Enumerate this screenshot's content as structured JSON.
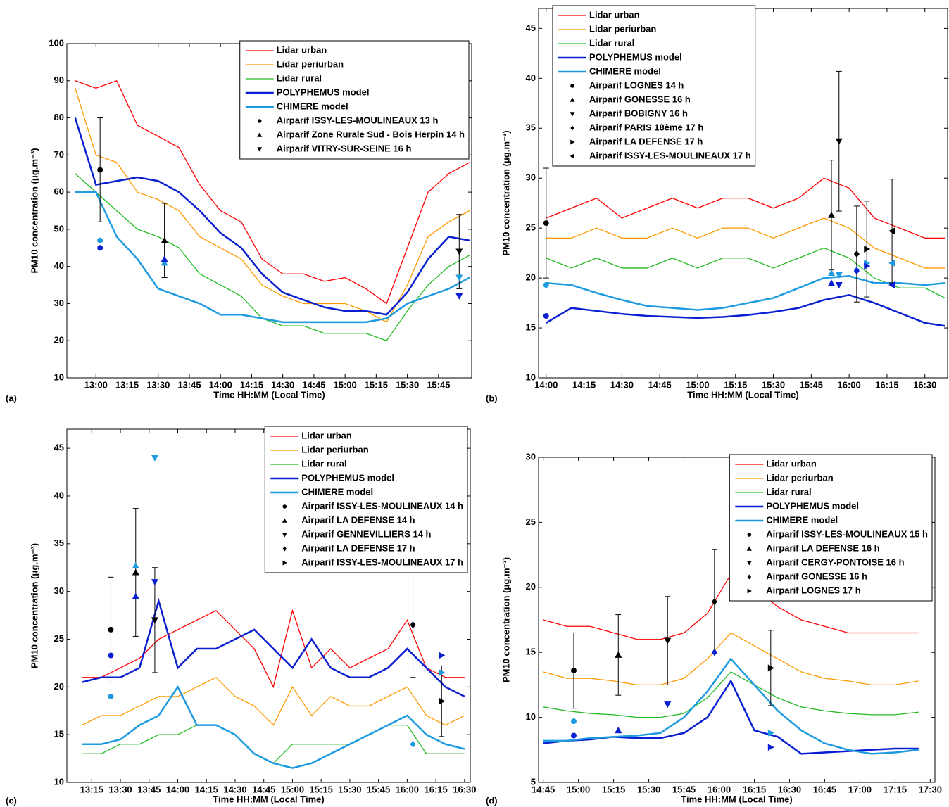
{
  "chart_data": [
    {
      "type": "line",
      "label": "(a)",
      "ylabel": "PM10 concentration (μg.m⁻³)",
      "xlabel": "Time HH:MM (Local Time)",
      "legend": "upper right",
      "xlim": [
        "12:46",
        "16:01"
      ],
      "xticks": [
        "13:00",
        "13:15",
        "13:30",
        "13:45",
        "14:00",
        "14:15",
        "14:30",
        "14:45",
        "15:00",
        "15:15",
        "15:30",
        "15:45"
      ],
      "ylim": [
        10,
        100
      ],
      "yticks": [
        10,
        20,
        30,
        40,
        50,
        60,
        70,
        80,
        90,
        100
      ],
      "x": [
        "12:50",
        "13:00",
        "13:10",
        "13:20",
        "13:30",
        "13:40",
        "13:50",
        "14:00",
        "14:10",
        "14:20",
        "14:30",
        "14:40",
        "14:50",
        "15:00",
        "15:10",
        "15:20",
        "15:30",
        "15:40",
        "15:50",
        "16:00"
      ],
      "series": [
        {
          "name": "Lidar urban",
          "color": "#ff0000",
          "values": [
            90,
            88,
            90,
            78,
            75,
            72,
            62,
            55,
            52,
            42,
            38,
            38,
            36,
            37,
            34,
            30,
            45,
            60,
            65,
            68
          ]
        },
        {
          "name": "Lidar periurban",
          "color": "#ff9900",
          "values": [
            88,
            70,
            68,
            60,
            58,
            55,
            48,
            45,
            42,
            35,
            32,
            30,
            30,
            30,
            28,
            25,
            35,
            48,
            52,
            55
          ]
        },
        {
          "name": "Lidar rural",
          "color": "#22bb22",
          "values": [
            65,
            60,
            55,
            50,
            48,
            45,
            38,
            35,
            32,
            26,
            24,
            24,
            22,
            22,
            22,
            20,
            28,
            35,
            40,
            43
          ]
        },
        {
          "name": "POLYPHEMUS model",
          "color": "#0a1fd0",
          "values": [
            80,
            62,
            63,
            64,
            63,
            60,
            55,
            49,
            45,
            38,
            33,
            31,
            29,
            28,
            28,
            27,
            33,
            42,
            48,
            47
          ]
        },
        {
          "name": "CHIMERE model",
          "color": "#1e9be0",
          "values": [
            60,
            60,
            48,
            42,
            34,
            32,
            30,
            27,
            27,
            26,
            25,
            25,
            25,
            25,
            25,
            26,
            30,
            32,
            34,
            37
          ]
        }
      ],
      "stations": [
        {
          "name": "Airparif ISSY-LES-MOULINEAUX 13 h",
          "marker": "circle",
          "x": "13:02",
          "value": 66,
          "error": 14,
          "polyphemus": 45,
          "chimere": 47
        },
        {
          "name": "Airparif Zone Rurale Sud - Bois Herpin 14 h",
          "marker": "triangle-up",
          "x": "13:33",
          "value": 47,
          "error": 10,
          "polyphemus": 42,
          "chimere": 41
        },
        {
          "name": "Airparif VITRY-SUR-SEINE 16 h",
          "marker": "triangle-down",
          "x": "15:55",
          "value": 44,
          "error": 10,
          "polyphemus": 32,
          "chimere": 37
        }
      ]
    },
    {
      "type": "line",
      "label": "(b)",
      "ylabel": "PM10 concentration (μg.m⁻³)",
      "xlabel": "Time HH:MM (Local Time)",
      "legend": "upper left",
      "xlim": [
        "13:57",
        "16:39"
      ],
      "xticks": [
        "14:00",
        "14:15",
        "14:30",
        "14:45",
        "15:00",
        "15:15",
        "15:30",
        "15:45",
        "16:00",
        "16:15",
        "16:30"
      ],
      "ylim": [
        10,
        47
      ],
      "yticks": [
        10,
        15,
        20,
        25,
        30,
        35,
        40,
        45
      ],
      "x": [
        "14:00",
        "14:10",
        "14:20",
        "14:30",
        "14:40",
        "14:50",
        "15:00",
        "15:10",
        "15:20",
        "15:30",
        "15:40",
        "15:50",
        "16:00",
        "16:10",
        "16:20",
        "16:30",
        "16:38"
      ],
      "series": [
        {
          "name": "Lidar urban",
          "color": "#ff0000",
          "values": [
            26,
            27,
            28,
            26,
            27,
            28,
            27,
            28,
            28,
            27,
            28,
            30,
            29,
            26,
            25,
            24,
            24
          ]
        },
        {
          "name": "Lidar periurban",
          "color": "#ff9900",
          "values": [
            24,
            24,
            25,
            24,
            24,
            25,
            24,
            25,
            25,
            24,
            25,
            26,
            25,
            23,
            22,
            21,
            21
          ]
        },
        {
          "name": "Lidar rural",
          "color": "#22bb22",
          "values": [
            22,
            21,
            22,
            21,
            21,
            22,
            21,
            22,
            22,
            21,
            22,
            23,
            22,
            20,
            19,
            19,
            18
          ]
        },
        {
          "name": "POLYPHEMUS model",
          "color": "#0a1fd0",
          "values": [
            15.5,
            17,
            16.7,
            16.4,
            16.2,
            16.1,
            16,
            16.1,
            16.3,
            16.6,
            17,
            17.8,
            18.3,
            17.5,
            16.5,
            15.5,
            15.2
          ]
        },
        {
          "name": "CHIMERE model",
          "color": "#1e9be0",
          "values": [
            19.5,
            19.3,
            18.5,
            17.8,
            17.2,
            17,
            16.8,
            17,
            17.5,
            18,
            19,
            20,
            20.2,
            19.5,
            19.5,
            19.3,
            19.5
          ]
        }
      ],
      "stations": [
        {
          "name": "Airparif LOGNES 14 h",
          "marker": "circle",
          "x": "14:00",
          "value": 25.5,
          "error": 5.5,
          "polyphemus": 16.2,
          "chimere": 19.3
        },
        {
          "name": "Airparif GONESSE 16 h",
          "marker": "triangle-up",
          "x": "15:53",
          "value": 26.3,
          "error": 5.5,
          "polyphemus": 19.5,
          "chimere": 20.5
        },
        {
          "name": "Airparif BOBIGNY 16 h",
          "marker": "triangle-down",
          "x": "15:56",
          "value": 33.7,
          "error": 7,
          "polyphemus": 19.3,
          "chimere": 20.3
        },
        {
          "name": "Airparif PARIS 18ème 17 h",
          "marker": "diamond",
          "x": "16:03",
          "value": 22.4,
          "error": 4.8,
          "polyphemus": 20.7,
          "chimere": 20.8
        },
        {
          "name": "Airparif LA DEFENSE 17 h",
          "marker": "triangle-right",
          "x": "16:07",
          "value": 22.9,
          "error": 4.8,
          "polyphemus": 21.2,
          "chimere": 21.5
        },
        {
          "name": "Airparif ISSY-LES-MOULINEAUX 17 h",
          "marker": "triangle-left",
          "x": "16:17",
          "value": 24.7,
          "error": 5.2,
          "polyphemus": 19.3,
          "chimere": 21.5
        }
      ]
    },
    {
      "type": "line",
      "label": "(c)",
      "ylabel": "PM10 concentration (μg.m⁻³)",
      "xlabel": "Time HH:MM (Local Time)",
      "legend": "upper right",
      "xlim": [
        "13:02",
        "16:33"
      ],
      "xticks": [
        "13:15",
        "13:30",
        "13:45",
        "14:00",
        "14:15",
        "14:30",
        "14:45",
        "15:00",
        "15:15",
        "15:30",
        "15:45",
        "16:00",
        "16:15",
        "16:30"
      ],
      "ylim": [
        10,
        47
      ],
      "yticks": [
        10,
        15,
        20,
        25,
        30,
        35,
        40,
        45
      ],
      "x": [
        "13:10",
        "13:20",
        "13:30",
        "13:40",
        "13:50",
        "14:00",
        "14:10",
        "14:20",
        "14:30",
        "14:40",
        "14:50",
        "15:00",
        "15:10",
        "15:20",
        "15:30",
        "15:40",
        "15:50",
        "16:00",
        "16:10",
        "16:20",
        "16:30"
      ],
      "series": [
        {
          "name": "Lidar urban",
          "color": "#ff0000",
          "values": [
            21,
            21,
            22,
            23,
            25,
            26,
            27,
            28,
            26,
            24,
            20,
            28,
            22,
            24,
            22,
            23,
            24,
            27,
            22,
            21,
            21
          ]
        },
        {
          "name": "Lidar periurban",
          "color": "#ff9900",
          "values": [
            16,
            17,
            17,
            18,
            19,
            19,
            20,
            21,
            19,
            18,
            16,
            20,
            17,
            19,
            18,
            18,
            19,
            20,
            17,
            16,
            17
          ]
        },
        {
          "name": "Lidar rural",
          "color": "#22bb22",
          "values": [
            13,
            13,
            14,
            14,
            15,
            15,
            16,
            16,
            15,
            13,
            12,
            14,
            14,
            14,
            14,
            15,
            16,
            16,
            13,
            13,
            13
          ]
        },
        {
          "name": "POLYPHEMUS model",
          "color": "#0a1fd0",
          "values": [
            20.5,
            21,
            21,
            22,
            29,
            22,
            24,
            24,
            25,
            26,
            24,
            22,
            25,
            22,
            21,
            21,
            22,
            24,
            22,
            20,
            19
          ]
        },
        {
          "name": "CHIMERE model",
          "color": "#1e9be0",
          "values": [
            14,
            14,
            14.5,
            16,
            17,
            20,
            16,
            16,
            15,
            13,
            12,
            11.5,
            12,
            13,
            14,
            15,
            16,
            17,
            15,
            14,
            13.5
          ]
        }
      ],
      "stations": [
        {
          "name": "Airparif ISSY-LES-MOULINEAUX 14 h",
          "marker": "circle",
          "x": "13:25",
          "value": 26,
          "error": 5.5,
          "polyphemus": 23.3,
          "chimere": 19
        },
        {
          "name": "Airparif LA DEFENSE 14 h",
          "marker": "triangle-up",
          "x": "13:38",
          "value": 32,
          "error": 6.7,
          "polyphemus": 29.5,
          "chimere": 32.7
        },
        {
          "name": "Airparif GENNEVILLIERS 14 h",
          "marker": "triangle-down",
          "x": "13:48",
          "value": 27,
          "error": 5.5,
          "polyphemus": 31,
          "chimere": 44
        },
        {
          "name": "Airparif LA DEFENSE 17 h",
          "marker": "diamond",
          "x": "16:03",
          "value": 26.5,
          "error": 5.5,
          "polyphemus": 26.5,
          "chimere": 14
        },
        {
          "name": "Airparif ISSY-LES-MOULINEAUX 17 h",
          "marker": "triangle-right",
          "x": "16:18",
          "value": 18.5,
          "error": 3.7,
          "polyphemus": 23.3,
          "chimere": 21.5
        }
      ]
    },
    {
      "type": "line",
      "label": "(d)",
      "ylabel": "PM10 concentration (μg.m⁻³)",
      "xlabel": "Time HH:MM (Local Time)",
      "legend": "upper right",
      "xlim": [
        "14:43",
        "17:32"
      ],
      "xticks": [
        "14:45",
        "15:00",
        "15:15",
        "15:30",
        "15:45",
        "16:00",
        "16:15",
        "16:30",
        "16:45",
        "17:00",
        "17:15",
        "17:30"
      ],
      "ylim": [
        5,
        30
      ],
      "yticks": [
        5,
        10,
        15,
        20,
        25,
        30
      ],
      "x": [
        "14:45",
        "14:55",
        "15:05",
        "15:15",
        "15:25",
        "15:35",
        "15:45",
        "15:55",
        "16:05",
        "16:15",
        "16:25",
        "16:35",
        "16:45",
        "16:55",
        "17:05",
        "17:15",
        "17:25"
      ],
      "series": [
        {
          "name": "Lidar urban",
          "color": "#ff0000",
          "values": [
            17.5,
            17,
            17,
            16.5,
            16,
            16,
            16.5,
            18,
            21,
            20,
            18.5,
            17.5,
            17,
            16.5,
            16.5,
            16.5,
            16.5
          ]
        },
        {
          "name": "Lidar periurban",
          "color": "#ff9900",
          "values": [
            13.5,
            13,
            13,
            12.8,
            12.5,
            12.5,
            13,
            14.5,
            16.5,
            15.5,
            14.5,
            13.5,
            13,
            12.8,
            12.5,
            12.5,
            12.8
          ]
        },
        {
          "name": "Lidar rural",
          "color": "#22bb22",
          "values": [
            10.8,
            10.5,
            10.3,
            10.2,
            10,
            10,
            10.3,
            11.5,
            13.5,
            12.5,
            11.5,
            10.8,
            10.5,
            10.3,
            10.2,
            10.2,
            10.4
          ]
        },
        {
          "name": "POLYPHEMUS model",
          "color": "#0a1fd0",
          "values": [
            8,
            8.2,
            8.3,
            8.5,
            8.4,
            8.4,
            8.8,
            10,
            12.8,
            9,
            8.5,
            7.2,
            7.3,
            7.4,
            7.5,
            7.6,
            7.6
          ]
        },
        {
          "name": "CHIMERE model",
          "color": "#1e9be0",
          "values": [
            8.2,
            8.2,
            8.4,
            8.5,
            8.6,
            8.8,
            10,
            12,
            14.5,
            12.5,
            10.5,
            9,
            8,
            7.5,
            7.2,
            7.3,
            7.5
          ]
        }
      ],
      "stations": [
        {
          "name": "Airparif ISSY-LES-MOULINEAUX 15 h",
          "marker": "circle",
          "x": "14:58",
          "value": 13.6,
          "error": 2.9,
          "polyphemus": 8.6,
          "chimere": 9.7
        },
        {
          "name": "Airparif LA DEFENSE 16 h",
          "marker": "triangle-up",
          "x": "15:17",
          "value": 14.8,
          "error": 3.1,
          "polyphemus": 9,
          "chimere": 9
        },
        {
          "name": "Airparif CERGY-PONTOISE 16 h",
          "marker": "triangle-down",
          "x": "15:38",
          "value": 15.9,
          "error": 3.4,
          "polyphemus": 11,
          "chimere": 11
        },
        {
          "name": "Airparif GONESSE 16 h",
          "marker": "diamond",
          "x": "15:58",
          "value": 18.9,
          "error": 4,
          "polyphemus": 15,
          "chimere": 15
        },
        {
          "name": "Airparif LOGNES 17 h",
          "marker": "triangle-right",
          "x": "16:22",
          "value": 13.8,
          "error": 2.9,
          "polyphemus": 7.7,
          "chimere": 8.8
        }
      ]
    }
  ]
}
